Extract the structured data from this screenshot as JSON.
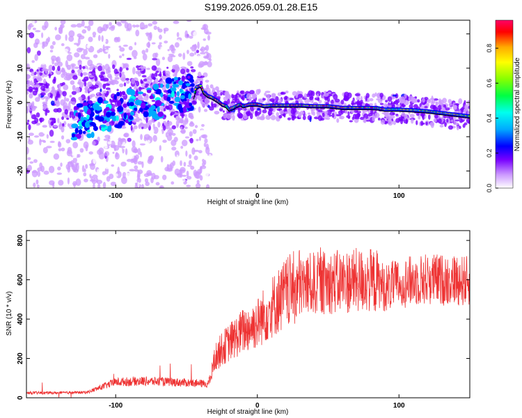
{
  "title": "S199.2026.059.01.28.E15",
  "chart_data": [
    {
      "type": "heatmap",
      "subtype": "spectrogram",
      "xlabel": "Height of straight line (km)",
      "ylabel": "Frequency (Hz)",
      "xlim": [
        -163,
        150
      ],
      "ylim": [
        -25,
        24
      ],
      "xticks": [
        -100,
        0,
        100
      ],
      "yticks": [
        -20,
        -10,
        0,
        10,
        20
      ],
      "colorbar": {
        "label": "Normalized spectral amplitude",
        "range": [
          0.0,
          0.96
        ],
        "ticks": [
          0.0,
          0.2,
          0.4,
          0.6,
          0.8
        ],
        "tick_labels": [
          "0.0",
          "0.2",
          "0.4",
          "0.6",
          "0.8"
        ],
        "colors": [
          "#ffffff",
          "#cc99ff",
          "#7700ff",
          "#0000ff",
          "#00aaff",
          "#00ffee",
          "#00ff44",
          "#88ff00",
          "#ffff00",
          "#ffaa00",
          "#ff0000",
          "#ff0066"
        ]
      },
      "ridge": {
        "x": [
          -45,
          -43,
          -40,
          -38,
          -35,
          -32,
          -28,
          -25,
          -22,
          -20,
          -17,
          -15,
          -12,
          -10,
          -5,
          0,
          5,
          10,
          15,
          20,
          25,
          30,
          40,
          50,
          60,
          70,
          80,
          85,
          90,
          95,
          100,
          110,
          120,
          130,
          140,
          150
        ],
        "y": [
          1.5,
          4.5,
          5.0,
          3.0,
          2.0,
          1.5,
          0.5,
          -0.5,
          -1.0,
          -2.0,
          -1.5,
          -1.0,
          -0.5,
          -1.0,
          -0.5,
          -0.5,
          -1.0,
          -0.8,
          -0.8,
          -0.8,
          -0.8,
          -0.8,
          -1.0,
          -1.0,
          -1.5,
          -1.5,
          -1.5,
          -1.6,
          -2.0,
          -2.0,
          -2.0,
          -2.2,
          -2.5,
          -3.0,
          -3.5,
          -4.0
        ]
      }
    },
    {
      "type": "line",
      "xlabel": "Height of straight line (km)",
      "ylabel": "SNR (10 * v/v)",
      "xlim": [
        -163,
        150
      ],
      "ylim": [
        0,
        850
      ],
      "xticks": [
        -100,
        0,
        100
      ],
      "yticks": [
        0,
        200,
        400,
        600,
        800
      ],
      "color": "#ee3333",
      "envelope": {
        "x": [
          -163,
          -140,
          -120,
          -110,
          -100,
          -80,
          -60,
          -45,
          -35,
          -33,
          -30,
          -25,
          -20,
          -10,
          0,
          10,
          20,
          30,
          40,
          50,
          60,
          70,
          80,
          85,
          90,
          100,
          110,
          120,
          130,
          140,
          150
        ],
        "y": [
          25,
          25,
          28,
          55,
          80,
          85,
          80,
          75,
          70,
          100,
          200,
          250,
          280,
          340,
          380,
          460,
          530,
          570,
          580,
          585,
          590,
          595,
          595,
          590,
          560,
          580,
          595,
          605,
          600,
          600,
          590
        ]
      }
    }
  ]
}
